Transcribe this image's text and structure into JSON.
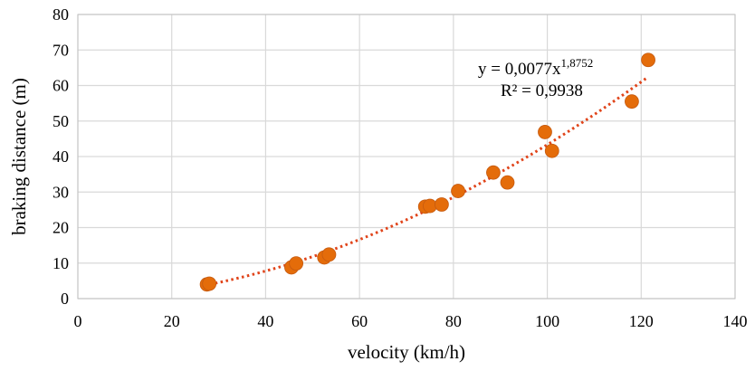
{
  "chart_data": {
    "type": "scatter",
    "xlabel": "velocity (km/h)",
    "ylabel": "braking distance (m)",
    "xlim": [
      0,
      140
    ],
    "ylim": [
      0,
      80
    ],
    "x_ticks": [
      "0",
      "20",
      "40",
      "60",
      "80",
      "100",
      "120",
      "140"
    ],
    "y_ticks": [
      "0",
      "10",
      "20",
      "30",
      "40",
      "50",
      "60",
      "70",
      "80"
    ],
    "grid": true,
    "marker_color": "#e46c0a",
    "trendline_color": "#e0441a",
    "points": [
      {
        "x": 27.5,
        "y": 4.0
      },
      {
        "x": 28.0,
        "y": 4.2
      },
      {
        "x": 45.5,
        "y": 8.8
      },
      {
        "x": 46.5,
        "y": 9.9
      },
      {
        "x": 52.5,
        "y": 11.6
      },
      {
        "x": 53.5,
        "y": 12.4
      },
      {
        "x": 74.0,
        "y": 25.9
      },
      {
        "x": 75.0,
        "y": 26.1
      },
      {
        "x": 77.5,
        "y": 26.5
      },
      {
        "x": 81.0,
        "y": 30.3
      },
      {
        "x": 88.5,
        "y": 35.5
      },
      {
        "x": 91.5,
        "y": 32.7
      },
      {
        "x": 99.5,
        "y": 46.9
      },
      {
        "x": 101.0,
        "y": 41.6
      },
      {
        "x": 118.0,
        "y": 55.5
      },
      {
        "x": 121.5,
        "y": 67.2
      }
    ],
    "trendline": {
      "type": "power",
      "coefficient": 0.0077,
      "exponent": 1.8752,
      "x_range": [
        27,
        121.5
      ],
      "equation_base": "y = 0,0077x",
      "equation_exponent": "1,8752",
      "r_squared": "R² = 0,9938"
    }
  }
}
